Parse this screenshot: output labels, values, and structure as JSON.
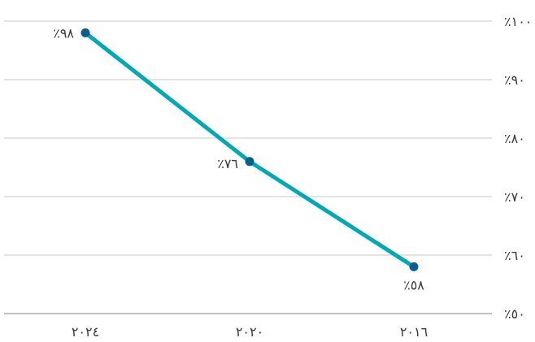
{
  "chart_data": {
    "type": "line",
    "x": [
      "٢٠٢٤",
      "٢٠٢٠",
      "٢٠١٦"
    ],
    "series": [
      {
        "values": [
          98,
          76,
          58
        ],
        "labels": [
          "٪٩٨",
          "٪٧٦",
          "٪٥٨"
        ]
      }
    ],
    "ylim": [
      50,
      100
    ],
    "yticks": [
      50,
      60,
      70,
      80,
      90,
      100
    ],
    "ytick_labels": [
      "٪٥٠",
      "٪٦٠",
      "٪٧٠",
      "٪٨٠",
      "٪٩٠",
      "٪١٠٠"
    ],
    "grid": true,
    "y_axis_side": "right",
    "colors": {
      "line": "#00aab5",
      "marker": "#0a5d8f",
      "grid": "#c8c8c8"
    }
  }
}
